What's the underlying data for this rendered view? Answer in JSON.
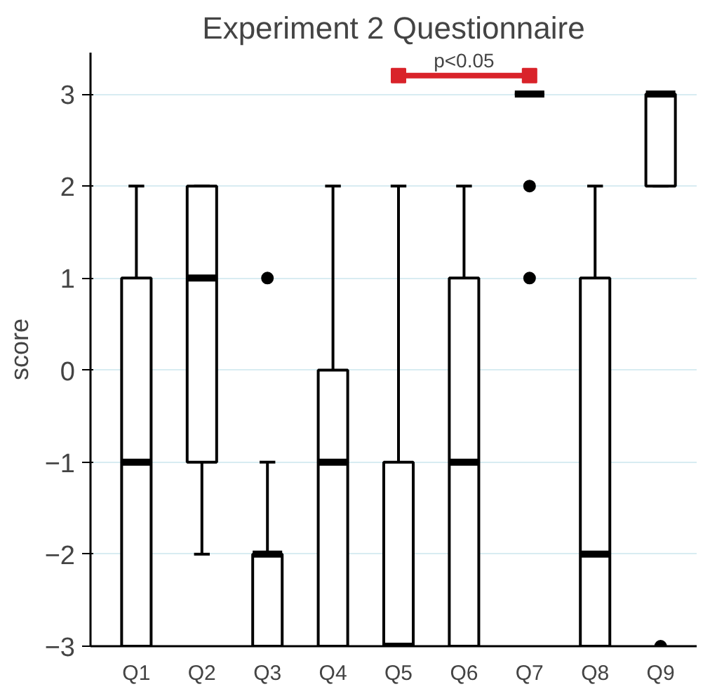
{
  "chart_data": {
    "type": "box",
    "title": "Experiment 2 Questionnaire",
    "ylabel": "score",
    "categories": [
      "Q1",
      "Q2",
      "Q3",
      "Q4",
      "Q5",
      "Q6",
      "Q7",
      "Q8",
      "Q9"
    ],
    "boxes": [
      {
        "low": -3,
        "q1": -3,
        "median": -1,
        "q3": 1,
        "high": 2
      },
      {
        "low": -2,
        "q1": -1,
        "median": 1,
        "q3": 2,
        "high": 2
      },
      {
        "low": -3,
        "q1": -3,
        "median": -2,
        "q3": -2,
        "high": -1,
        "outliers": [
          1
        ]
      },
      {
        "low": -3,
        "q1": -3,
        "median": -1,
        "q3": 0,
        "high": 2
      },
      {
        "low": -3,
        "q1": -3,
        "median": -3,
        "q3": -1,
        "high": 2
      },
      {
        "low": -3,
        "q1": -3,
        "median": -1,
        "q3": 1,
        "high": 2
      },
      {
        "low": 3,
        "q1": 3,
        "median": 3,
        "q3": 3,
        "high": 3,
        "outliers": [
          2,
          1
        ]
      },
      {
        "low": -3,
        "q1": -3,
        "median": -2,
        "q3": 1,
        "high": 2
      },
      {
        "low": 2,
        "q1": 2,
        "median": 3,
        "q3": 3,
        "high": 3,
        "outliers": [
          -3
        ]
      }
    ],
    "ylim": [
      -3,
      3.45
    ],
    "yticks": [
      -3,
      -2,
      -1,
      0,
      1,
      2,
      3
    ],
    "grid": "y",
    "annotations": [
      "p<0.05"
    ]
  }
}
